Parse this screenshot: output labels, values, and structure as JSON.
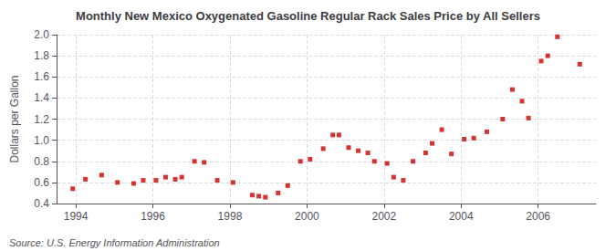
{
  "chart_data": {
    "type": "scatter",
    "title": "Monthly New Mexico Oxygenated Gasoline Regular Rack Sales Price by All Sellers",
    "ylabel": "Dollars per Gallon",
    "annotations": [
      "Source: U.S. Energy Information Administration"
    ],
    "color": "#cc0000",
    "marker": "square",
    "grid": true,
    "xlim": [
      1993.5,
      2007.5
    ],
    "ylim": [
      0.4,
      2.0
    ],
    "xticks": [
      1994,
      1996,
      1998,
      2000,
      2002,
      2004,
      2006
    ],
    "yticks": [
      0.4,
      0.6,
      0.8,
      {
        "value": 1.0,
        "label": "1.0"
      },
      1.2,
      1.4,
      1.6,
      1.8,
      {
        "value": 2.0,
        "label": "2.0"
      }
    ],
    "x": [
      1993.92,
      1994.25,
      1994.67,
      1995.08,
      1995.5,
      1995.75,
      1996.08,
      1996.33,
      1996.58,
      1996.75,
      1997.08,
      1997.33,
      1997.67,
      1998.08,
      1998.58,
      1998.75,
      1998.92,
      1999.25,
      1999.5,
      1999.83,
      2000.08,
      2000.42,
      2000.67,
      2000.83,
      2001.08,
      2001.33,
      2001.58,
      2001.75,
      2002.08,
      2002.25,
      2002.5,
      2002.75,
      2003.08,
      2003.25,
      2003.5,
      2003.75,
      2004.08,
      2004.33,
      2004.67,
      2005.08,
      2005.33,
      2005.58,
      2005.75,
      2006.08,
      2006.25,
      2006.5,
      2007.08
    ],
    "values": [
      0.54,
      0.63,
      0.67,
      0.6,
      0.59,
      0.62,
      0.62,
      0.65,
      0.63,
      0.65,
      0.8,
      0.79,
      0.62,
      0.6,
      0.48,
      0.47,
      0.46,
      0.5,
      0.57,
      0.8,
      0.82,
      0.92,
      1.05,
      1.05,
      0.93,
      0.9,
      0.88,
      0.8,
      0.78,
      0.65,
      0.62,
      0.8,
      0.88,
      0.97,
      1.1,
      0.87,
      1.01,
      1.02,
      1.08,
      1.2,
      1.48,
      1.37,
      1.21,
      1.75,
      1.8,
      1.98,
      1.72
    ]
  }
}
